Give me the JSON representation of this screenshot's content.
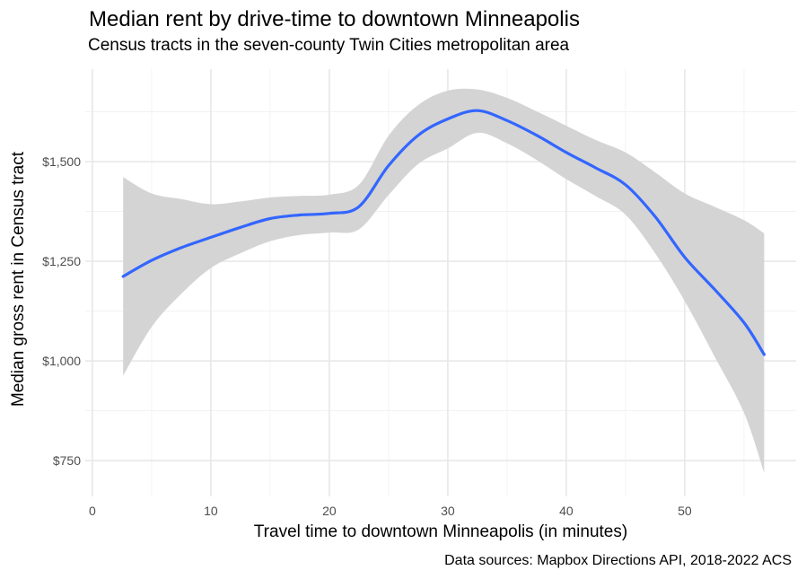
{
  "header": {
    "title": "Median rent by drive-time to downtown Minneapolis",
    "subtitle": "Census tracts in the seven-county Twin Cities metropolitan area"
  },
  "axes": {
    "x_label": "Travel time to downtown Minneapolis (in minutes)",
    "y_label": "Median gross rent in Census tract"
  },
  "caption": "Data sources: Mapbox Directions API, 2018-2022 ACS",
  "colors": {
    "background": "#FFFFFF",
    "line": "#3366FF",
    "band": "#D4D4D4",
    "grid_major": "#E8E8E8",
    "grid_minor": "#F2F2F2",
    "tick_text": "#4D4D4D",
    "text": "#000000"
  },
  "chart_data": {
    "type": "line",
    "title": "Median rent by drive-time to downtown Minneapolis",
    "subtitle": "Census tracts in the seven-county Twin Cities metropolitan area",
    "xlabel": "Travel time to downtown Minneapolis (in minutes)",
    "ylabel": "Median gross rent in Census tract",
    "caption": "Data sources: Mapbox Directions API, 2018-2022 ACS",
    "legend": "none",
    "grid": "major+minor",
    "band_meaning": "confidence interval around smoothed (loess) fit",
    "xlim": [
      -0.6,
      59.4
    ],
    "ylim": [
      660,
      1732
    ],
    "x_ticks": [
      {
        "value": 0,
        "label": "0"
      },
      {
        "value": 10,
        "label": "10"
      },
      {
        "value": 20,
        "label": "20"
      },
      {
        "value": 30,
        "label": "30"
      },
      {
        "value": 40,
        "label": "40"
      },
      {
        "value": 50,
        "label": "50"
      }
    ],
    "x_minor_ticks": [
      5,
      15,
      25,
      35,
      45,
      55
    ],
    "y_ticks": [
      {
        "value": 750,
        "label": "$750"
      },
      {
        "value": 1000,
        "label": "$1,000"
      },
      {
        "value": 1250,
        "label": "$1,250"
      },
      {
        "value": 1500,
        "label": "$1,500"
      }
    ],
    "y_minor_ticks": [
      875,
      1125,
      1375,
      1625
    ],
    "x": [
      2.6,
      5,
      7.5,
      10,
      12.5,
      15,
      17.5,
      20,
      22.5,
      25,
      27.5,
      30,
      32.5,
      35,
      37.5,
      40,
      42.5,
      45,
      47.5,
      50,
      52.5,
      55,
      56.7
    ],
    "series": [
      {
        "name": "loess_fit",
        "color": "#3366FF",
        "values": [
          1212,
          1252,
          1284,
          1310,
          1335,
          1357,
          1366,
          1370,
          1387,
          1490,
          1566,
          1607,
          1628,
          1603,
          1566,
          1523,
          1484,
          1442,
          1362,
          1260,
          1180,
          1096,
          1016
        ]
      },
      {
        "name": "ci_lower",
        "color": "#D4D4D4",
        "values": [
          963,
          1085,
          1168,
          1233,
          1270,
          1300,
          1316,
          1322,
          1330,
          1416,
          1494,
          1533,
          1572,
          1546,
          1504,
          1456,
          1413,
          1367,
          1270,
          1150,
          1012,
          870,
          719
        ]
      },
      {
        "name": "ci_upper",
        "color": "#D4D4D4",
        "values": [
          1461,
          1420,
          1406,
          1393,
          1400,
          1410,
          1414,
          1417,
          1442,
          1565,
          1642,
          1678,
          1681,
          1660,
          1626,
          1590,
          1554,
          1523,
          1473,
          1420,
          1387,
          1353,
          1320
        ]
      }
    ]
  }
}
